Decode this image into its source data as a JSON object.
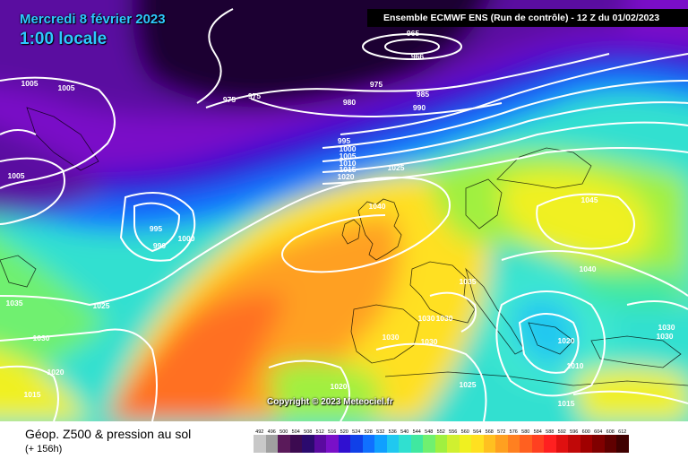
{
  "header": {
    "date": "Mercredi 8 février 2023",
    "local_time": "1:00 locale",
    "run_info": "Ensemble ECMWF ENS  (Run de contrôle)  -  12 Z du 01/02/2023"
  },
  "map": {
    "copyright": "Copyright © 2023 Meteociel.fr",
    "isobar_labels": [
      "965",
      "966",
      "975",
      "975",
      "975",
      "980",
      "985",
      "990",
      "995",
      "1000",
      "1005",
      "1010",
      "1015",
      "1020",
      "1025",
      "1005",
      "1005",
      "1005",
      "995",
      "990",
      "1000",
      "1035",
      "1025",
      "1030",
      "1020",
      "1015",
      "1040",
      "1045",
      "1040",
      "1035",
      "1030",
      "1030",
      "1030",
      "1030",
      "1030",
      "1020",
      "1025",
      "1015",
      "1010",
      "1030",
      "1030",
      "1020"
    ]
  },
  "legend": {
    "product": "Géop. Z500 & pression au sol",
    "forecast_hour": "(+ 156h)",
    "scale_values": [
      "492",
      "496",
      "500",
      "504",
      "508",
      "512",
      "516",
      "520",
      "524",
      "528",
      "532",
      "536",
      "540",
      "544",
      "548",
      "552",
      "556",
      "560",
      "564",
      "568",
      "572",
      "576",
      "580",
      "584",
      "588",
      "592",
      "596",
      "600",
      "604",
      "608",
      "612"
    ],
    "scale_colors": [
      "#c8c8c8",
      "#a0a0a0",
      "#5a1a5a",
      "#3c0a50",
      "#2b0a6e",
      "#5a0aa0",
      "#7a10c8",
      "#3010d0",
      "#1040e8",
      "#1070ff",
      "#10a0ff",
      "#20c8f0",
      "#30e0d0",
      "#40e8a0",
      "#70f070",
      "#a0f040",
      "#d0f030",
      "#f0f020",
      "#ffe020",
      "#ffc020",
      "#ffa020",
      "#ff8020",
      "#ff6020",
      "#ff4020",
      "#ff2020",
      "#e01010",
      "#c00808",
      "#a00000",
      "#800000",
      "#600000",
      "#400000"
    ]
  }
}
